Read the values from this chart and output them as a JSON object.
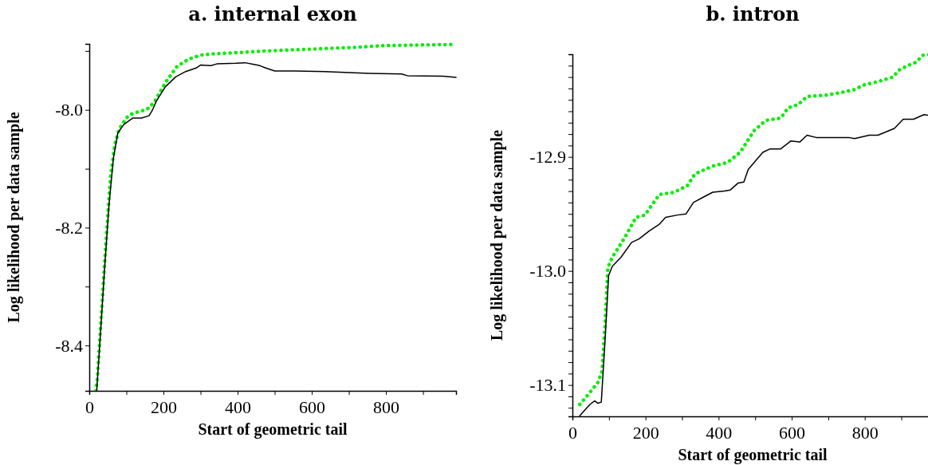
{
  "chart_data": [
    {
      "type": "line",
      "title": "a. internal exon",
      "xlabel": "Start of geometric tail",
      "ylabel": "Log likelihood per data sample",
      "xlim": [
        0,
        989
      ],
      "ylim": [
        -8.477,
        -7.888
      ],
      "xticks": [
        0,
        {
          "value": 100,
          "label": null
        },
        200,
        {
          "value": 300,
          "label": null
        },
        400,
        {
          "value": 500,
          "label": null
        },
        600,
        {
          "value": 700,
          "label": null
        },
        800,
        {
          "value": 900,
          "label": null
        }
      ],
      "yticks": [
        -8.4,
        {
          "value": -8.3,
          "label": null
        },
        -8.2,
        {
          "value": -8.1,
          "label": null
        },
        {
          "value": -8,
          "label": "-8.0"
        },
        {
          "value": -7.9,
          "label": null
        }
      ],
      "grid": false,
      "marker": "none",
      "series": [
        {
          "color": "#00ee00",
          "line_style": "dotted",
          "x": [
            17.5,
            21.5,
            33,
            45,
            57,
            69,
            81,
            101,
            117,
            141,
            161,
            177,
            205,
            237,
            268,
            300,
            335,
            396,
            476,
            555,
            635,
            714,
            794,
            874,
            989
          ],
          "values": [
            -8.477,
            -8.457,
            -8.343,
            -8.224,
            -8.115,
            -8.058,
            -8.032,
            -8.013,
            -8.006,
            -8.002,
            -7.997,
            -7.985,
            -7.954,
            -7.926,
            -7.914,
            -7.907,
            -7.905,
            -7.903,
            -7.9,
            -7.898,
            -7.896,
            -7.894,
            -7.891,
            -7.89,
            -7.889
          ]
        },
        {
          "color": "#000000",
          "line_style": "solid",
          "x": [
            20,
            29,
            41,
            53,
            65,
            77,
            93,
            117,
            141,
            161,
            169,
            181,
            205,
            233,
            260,
            288,
            300,
            328,
            344,
            396,
            420,
            444,
            460,
            476,
            500,
            555,
            635,
            714,
            754,
            842,
            858,
            953,
            989
          ],
          "values": [
            -8.477,
            -8.391,
            -8.272,
            -8.163,
            -8.082,
            -8.039,
            -8.025,
            -8.014,
            -8.014,
            -8.01,
            -8.002,
            -7.985,
            -7.961,
            -7.944,
            -7.935,
            -7.929,
            -7.924,
            -7.925,
            -7.922,
            -7.921,
            -7.92,
            -7.923,
            -7.925,
            -7.929,
            -7.934,
            -7.934,
            -7.935,
            -7.937,
            -7.938,
            -7.939,
            -7.942,
            -7.943,
            -7.945
          ]
        }
      ]
    },
    {
      "type": "line",
      "title": "b. intron",
      "xlabel": "Start of geometric tail",
      "ylabel": "Log likelihood per data sample",
      "xlim": [
        0,
        986
      ],
      "ylim": [
        -13.1275,
        -12.81
      ],
      "xticks": [
        0,
        {
          "value": 100,
          "label": null
        },
        200,
        {
          "value": 300,
          "label": null
        },
        400,
        {
          "value": 500,
          "label": null
        },
        600,
        {
          "value": 700,
          "label": null
        },
        800,
        {
          "value": 900,
          "label": null
        }
      ],
      "yticks": [
        {
          "value": -13.12,
          "label": null
        },
        {
          "value": -13.11,
          "label": null
        },
        -13.1,
        {
          "value": -13.09,
          "label": null
        },
        {
          "value": -13.08,
          "label": null
        },
        {
          "value": -13.07,
          "label": null
        },
        {
          "value": -13.06,
          "label": null
        },
        {
          "value": -13.05,
          "label": null
        },
        {
          "value": -13.04,
          "label": null
        },
        {
          "value": -13.03,
          "label": null
        },
        {
          "value": -13.02,
          "label": null
        },
        {
          "value": -13.01,
          "label": null
        },
        {
          "value": -13,
          "label": "-13.0"
        },
        {
          "value": -12.99,
          "label": null
        },
        {
          "value": -12.98,
          "label": null
        },
        {
          "value": -12.97,
          "label": null
        },
        {
          "value": -12.96,
          "label": null
        },
        {
          "value": -12.95,
          "label": null
        },
        {
          "value": -12.94,
          "label": null
        },
        {
          "value": -12.93,
          "label": null
        },
        {
          "value": -12.92,
          "label": null
        },
        {
          "value": -12.91,
          "label": null
        },
        -12.9,
        {
          "value": -12.89,
          "label": null
        },
        {
          "value": -12.88,
          "label": null
        },
        {
          "value": -12.87,
          "label": null
        },
        {
          "value": -12.86,
          "label": null
        },
        {
          "value": -12.85,
          "label": null
        },
        {
          "value": -12.84,
          "label": null
        },
        {
          "value": -12.83,
          "label": null
        },
        {
          "value": -12.82,
          "label": null
        }
      ],
      "grid": false,
      "marker": "none",
      "series": [
        {
          "color": "#00ee00",
          "line_style": "dotted",
          "x": [
            20,
            44,
            69,
            81,
            89,
            97,
            109,
            141,
            174,
            198,
            238,
            279,
            315,
            335,
            384,
            424,
            459,
            497,
            529,
            570,
            590,
            618,
            642,
            691,
            743,
            772,
            796,
            836,
            877,
            893,
            917,
            941,
            958,
            986
          ],
          "values": [
            -13.117,
            -13.108,
            -13.098,
            -13.088,
            -13.049,
            -12.997,
            -12.988,
            -12.972,
            -12.953,
            -12.951,
            -12.933,
            -12.931,
            -12.925,
            -12.915,
            -12.908,
            -12.905,
            -12.896,
            -12.877,
            -12.868,
            -12.866,
            -12.857,
            -12.854,
            -12.847,
            -12.846,
            -12.843,
            -12.841,
            -12.837,
            -12.834,
            -12.83,
            -12.824,
            -12.82,
            -12.817,
            -12.811,
            -12.81
          ]
        },
        {
          "color": "#000000",
          "line_style": "solid",
          "x": [
            20,
            48,
            61,
            70,
            79,
            89,
            99,
            109,
            133,
            162,
            182,
            210,
            238,
            255,
            287,
            311,
            331,
            360,
            384,
            416,
            432,
            453,
            469,
            481,
            505,
            521,
            541,
            570,
            598,
            622,
            642,
            667,
            691,
            756,
            772,
            812,
            836,
            881,
            905,
            933,
            962,
            986
          ],
          "values": [
            -13.127,
            -13.117,
            -13.114,
            -13.116,
            -13.115,
            -13.062,
            -13.004,
            -12.996,
            -12.988,
            -12.975,
            -12.972,
            -12.965,
            -12.959,
            -12.953,
            -12.951,
            -12.95,
            -12.94,
            -12.935,
            -12.931,
            -12.93,
            -12.929,
            -12.923,
            -12.922,
            -12.911,
            -12.902,
            -12.896,
            -12.893,
            -12.893,
            -12.886,
            -12.887,
            -12.881,
            -12.883,
            -12.883,
            -12.883,
            -12.884,
            -12.881,
            -12.881,
            -12.875,
            -12.867,
            -12.867,
            -12.863,
            -12.864
          ]
        }
      ]
    }
  ]
}
